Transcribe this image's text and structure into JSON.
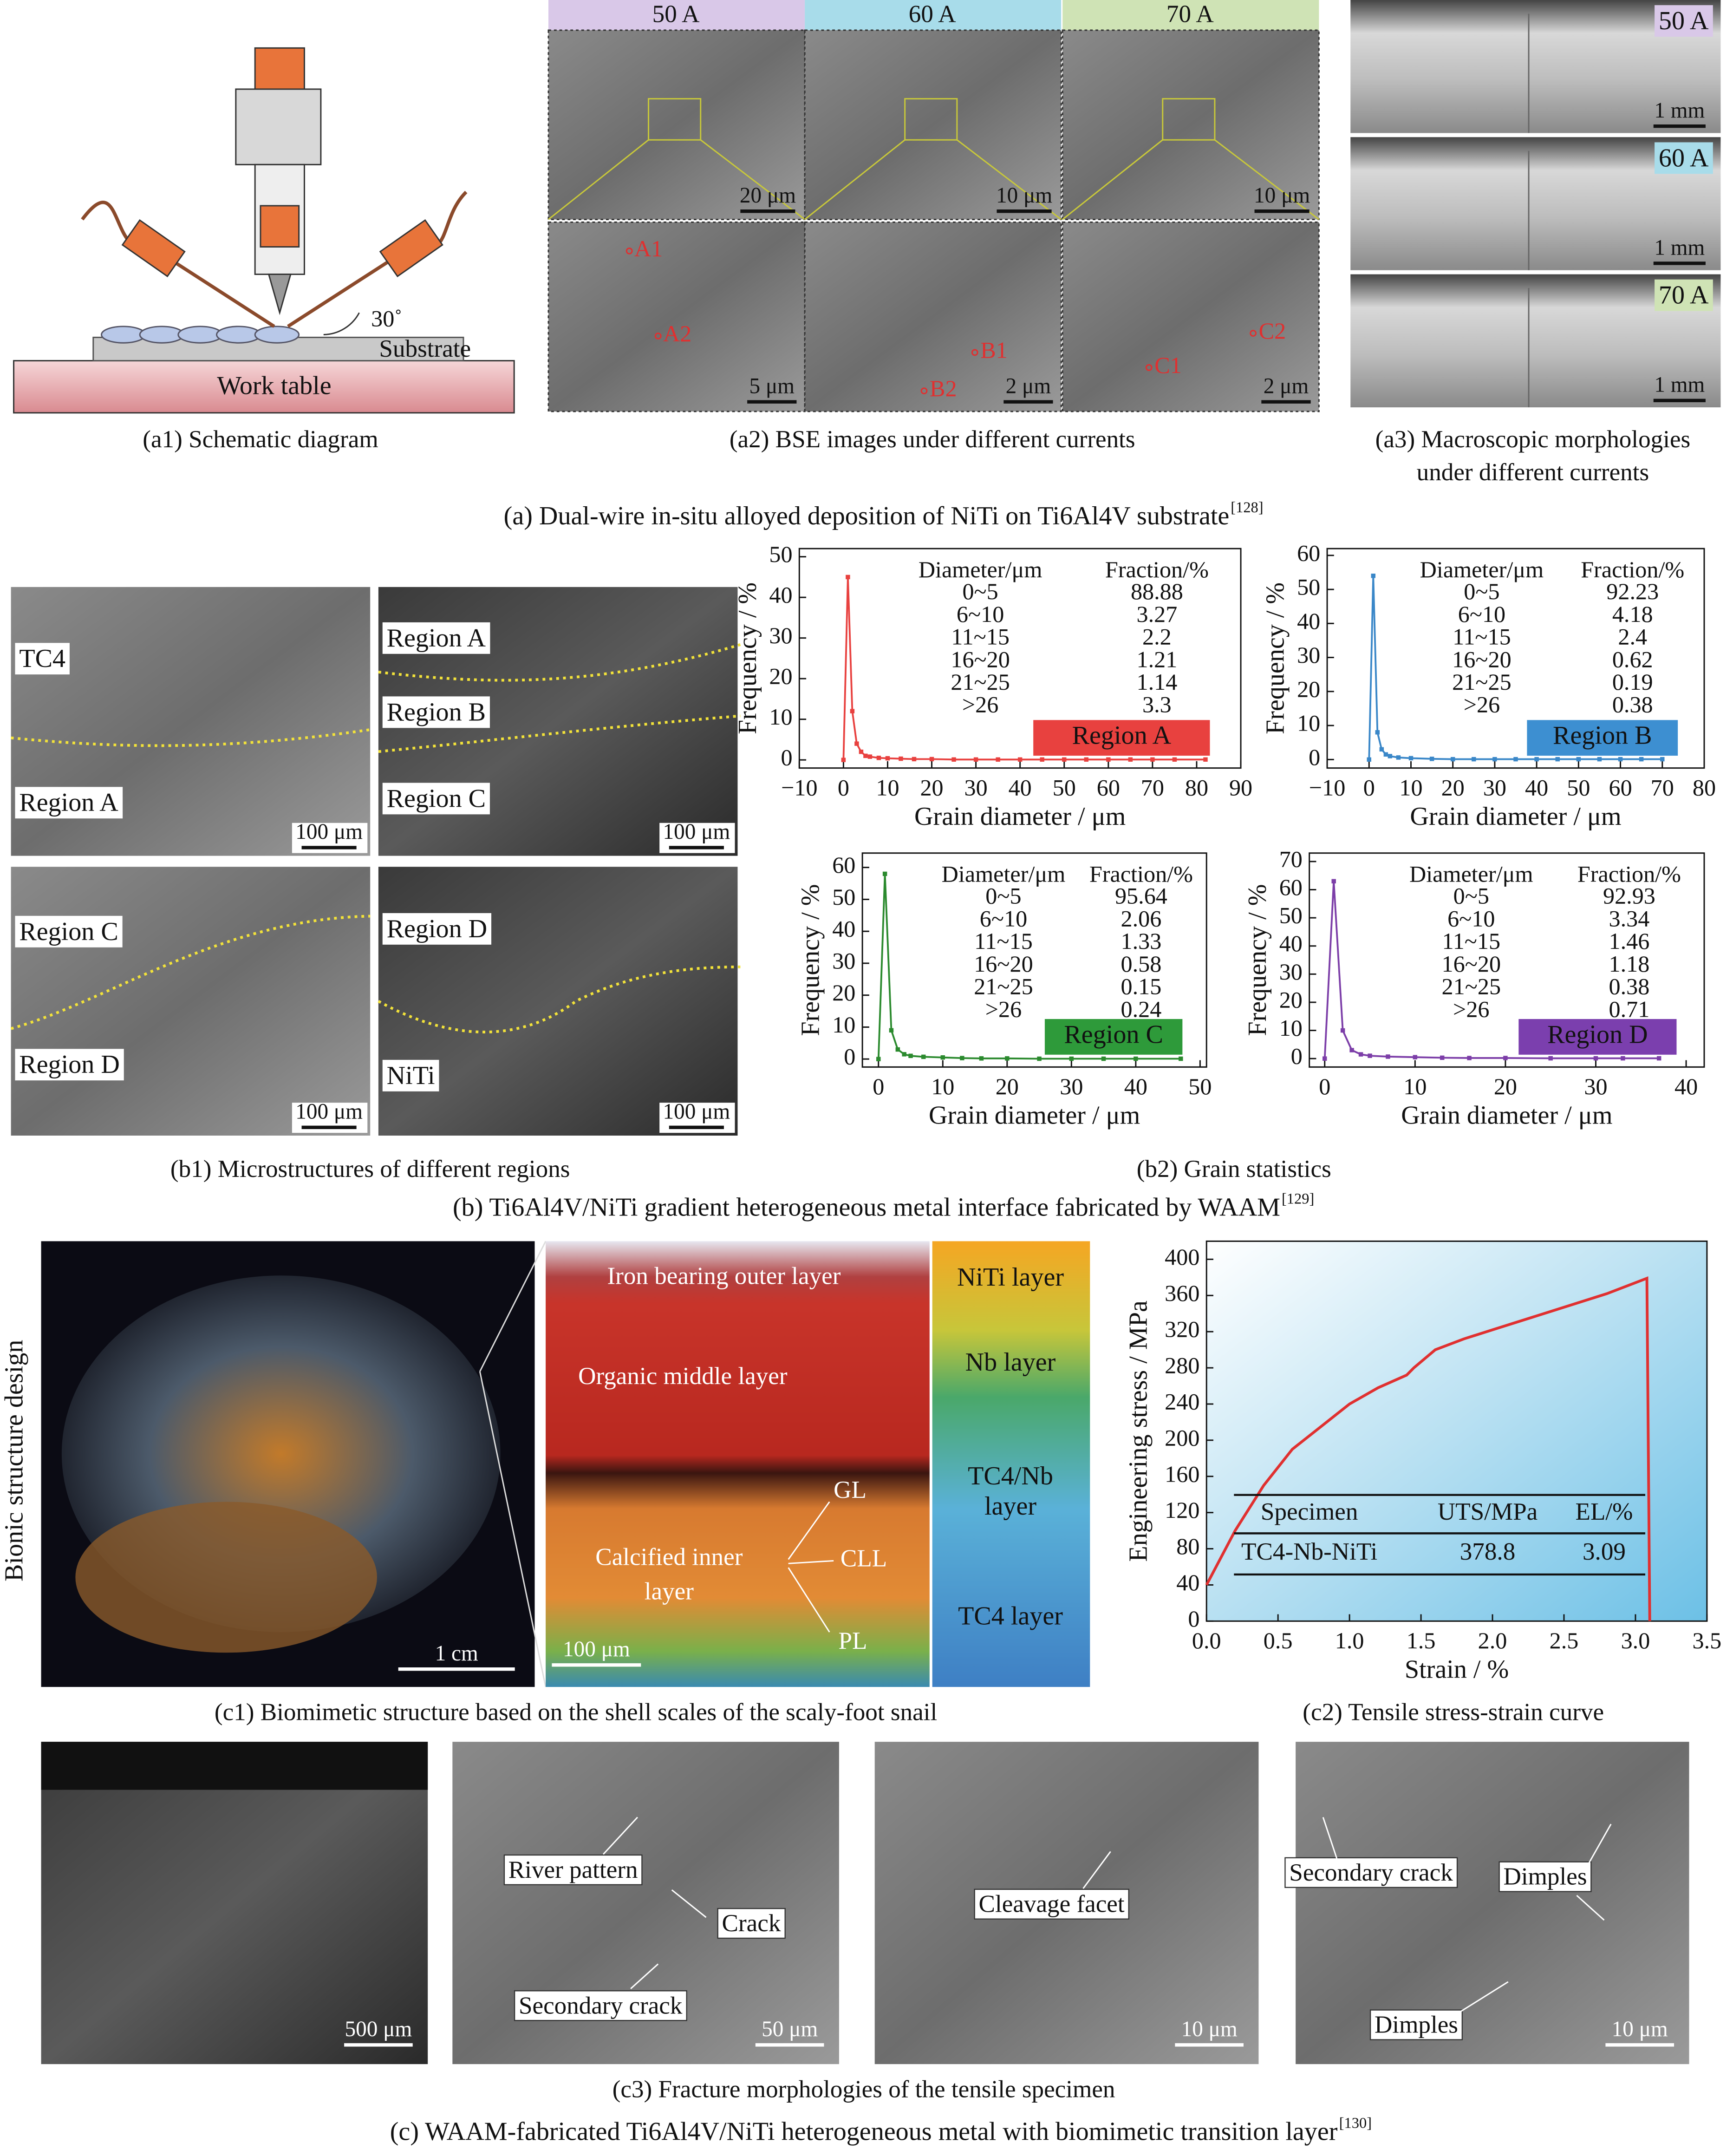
{
  "chart_data": [
    {
      "type": "line",
      "markers": true,
      "color": "#e8413f",
      "x": [
        0,
        1,
        2,
        3,
        4,
        5,
        6,
        8,
        10,
        13,
        16,
        20,
        25,
        30,
        35,
        40,
        45,
        50,
        55,
        60,
        65,
        70,
        75,
        82
      ],
      "values": [
        0,
        45,
        12,
        4,
        2,
        1,
        0.8,
        0.5,
        0.4,
        0.3,
        0.2,
        0.2,
        0.1,
        0.1,
        0.1,
        0.1,
        0.1,
        0.1,
        0.1,
        0.1,
        0.1,
        0.1,
        0.1,
        0.1
      ],
      "xlabel": "Grain diameter / μm",
      "ylabel": "Frequency / %",
      "xlim": [
        -10,
        90
      ],
      "xticks": [
        {
          "value": -10,
          "label": "−10"
        },
        0,
        10,
        20,
        30,
        40,
        50,
        60,
        70,
        80,
        90
      ],
      "ylim": [
        -2,
        52
      ],
      "yticks": [
        0,
        10,
        20,
        30,
        40,
        50
      ],
      "table": {
        "header": [
          "Diameter/μm",
          "Fraction/%"
        ],
        "rows": [
          [
            "0~5",
            "88.88"
          ],
          [
            "6~10",
            "3.27"
          ],
          [
            "11~15",
            "2.2"
          ],
          [
            "16~20",
            "1.21"
          ],
          [
            "21~25",
            "1.14"
          ],
          [
            ">26",
            "3.3"
          ]
        ]
      },
      "label": "Region A",
      "label_color": "#e8413f"
    },
    {
      "type": "line",
      "markers": true,
      "color": "#3a87c8",
      "x": [
        0,
        1,
        2,
        3,
        4,
        5,
        7,
        10,
        15,
        20,
        25,
        30,
        35,
        40,
        45,
        50,
        55,
        60,
        65,
        70
      ],
      "values": [
        0,
        54,
        8,
        3,
        1.5,
        1,
        0.6,
        0.4,
        0.2,
        0.1,
        0.1,
        0.1,
        0.1,
        0.1,
        0.1,
        0.1,
        0.1,
        0.1,
        0.1,
        0.1
      ],
      "xlabel": "Grain diameter / μm",
      "ylabel": "Frequency / %",
      "xlim": [
        -10,
        80
      ],
      "xticks": [
        {
          "value": -10,
          "label": "−10"
        },
        0,
        10,
        20,
        30,
        40,
        50,
        60,
        70,
        80
      ],
      "ylim": [
        -2.5,
        62
      ],
      "yticks": [
        0,
        10,
        20,
        30,
        40,
        50,
        60
      ],
      "table": {
        "header": [
          "Diameter/μm",
          "Fraction/%"
        ],
        "rows": [
          [
            "0~5",
            "92.23"
          ],
          [
            "6~10",
            "4.18"
          ],
          [
            "11~15",
            "2.4"
          ],
          [
            "16~20",
            "0.62"
          ],
          [
            "21~25",
            "0.19"
          ],
          [
            ">26",
            "0.38"
          ]
        ]
      },
      "label": "Region B",
      "label_color": "#3d8fd1"
    },
    {
      "type": "line",
      "markers": true,
      "color": "#2b8a2e",
      "x": [
        0,
        1,
        2,
        3,
        4,
        5,
        7,
        10,
        13,
        16,
        20,
        25,
        30,
        35,
        40,
        47
      ],
      "values": [
        0,
        58,
        9,
        3,
        1.5,
        1,
        0.7,
        0.5,
        0.3,
        0.2,
        0.2,
        0.1,
        0.1,
        0.1,
        0.1,
        0.1
      ],
      "xlabel": "Grain diameter / μm",
      "ylabel": "Frequency / %",
      "xlim": [
        -2.5,
        51
      ],
      "xticks": [
        0,
        10,
        20,
        30,
        40,
        50
      ],
      "ylim": [
        -2.5,
        64.5
      ],
      "yticks": [
        0,
        10,
        20,
        30,
        40,
        50,
        60
      ],
      "table": {
        "header": [
          "Diameter/μm",
          "Fraction/%"
        ],
        "rows": [
          [
            "0~5",
            "95.64"
          ],
          [
            "6~10",
            "2.06"
          ],
          [
            "11~15",
            "1.33"
          ],
          [
            "16~20",
            "0.58"
          ],
          [
            "21~25",
            "0.15"
          ],
          [
            ">26",
            "0.24"
          ]
        ]
      },
      "label": "Region C",
      "label_color": "#2e9a3a"
    },
    {
      "type": "line",
      "markers": true,
      "color": "#7c3ea8",
      "x": [
        0,
        1,
        2,
        3,
        4,
        5,
        7,
        10,
        13,
        16,
        20,
        25,
        30,
        33,
        37
      ],
      "values": [
        0,
        63,
        10,
        3,
        1.5,
        1,
        0.7,
        0.5,
        0.3,
        0.2,
        0.2,
        0.1,
        0.1,
        0.1,
        0.1
      ],
      "xlabel": "Grain diameter / μm",
      "ylabel": "Frequency / %",
      "xlim": [
        -1.7,
        42
      ],
      "xticks": [
        0,
        10,
        20,
        30,
        40
      ],
      "ylim": [
        -3,
        73
      ],
      "yticks": [
        0,
        10,
        20,
        30,
        40,
        50,
        60,
        70
      ],
      "table": {
        "header": [
          "Diameter/μm",
          "Fraction/%"
        ],
        "rows": [
          [
            "0~5",
            "92.93"
          ],
          [
            "6~10",
            "3.34"
          ],
          [
            "11~15",
            "1.46"
          ],
          [
            "16~20",
            "1.18"
          ],
          [
            "21~25",
            "0.38"
          ],
          [
            ">26",
            "0.71"
          ]
        ]
      },
      "label": "Region D",
      "label_color": "#7b3fae"
    },
    {
      "type": "line",
      "markers": false,
      "color": "#e03030",
      "x": [
        0,
        0.2,
        0.4,
        0.6,
        0.8,
        1.0,
        1.2,
        1.4,
        1.45,
        1.6,
        1.8,
        2.0,
        2.4,
        2.8,
        3.08,
        3.1
      ],
      "values": [
        40,
        100,
        150,
        190,
        215,
        240,
        258,
        272,
        280,
        300,
        312,
        322,
        342,
        362,
        379,
        0
      ],
      "xlabel": "Strain / %",
      "ylabel": "Engineering stress / MPa",
      "xlim": [
        0,
        3.5
      ],
      "xticks": [
        {
          "value": 0,
          "label": "0.0"
        },
        0.5,
        {
          "value": 1,
          "label": "1.0"
        },
        1.5,
        {
          "value": 2,
          "label": "2.0"
        },
        2.5,
        {
          "value": 3,
          "label": "3.0"
        },
        3.5
      ],
      "ylim": [
        0,
        420
      ],
      "yticks": [
        0,
        40,
        80,
        120,
        160,
        200,
        240,
        280,
        320,
        360,
        400
      ],
      "table": {
        "header": [
          "Specimen",
          "UTS/MPa",
          "EL/%"
        ],
        "rows": [
          [
            "TC4-Nb-NiTi",
            "378.8",
            "3.09"
          ]
        ]
      }
    }
  ],
  "figure_a": {
    "title": "(a) Dual-wire in-situ alloyed deposition of NiTi on Ti6Al4V substrate",
    "ref": "[128]",
    "a1": {
      "caption": "(a1) Schematic diagram",
      "angle": "30˚",
      "substrate": "Substrate",
      "table": "Work table"
    },
    "a2": {
      "caption": "(a2) BSE images under different currents",
      "currents": [
        "50 A",
        "60 A",
        "70 A"
      ],
      "scales_top": [
        "20 μm",
        "10 μm",
        "10 μm"
      ],
      "scales_bottom": [
        "5 μm",
        "2 μm",
        "2 μm"
      ],
      "points": [
        "A1",
        "A2",
        "B1",
        "B2",
        "C1",
        "C2"
      ]
    },
    "a3": {
      "caption": [
        "(a3) Macroscopic morphologies",
        "under different currents"
      ],
      "currents": [
        "50 A",
        "60 A",
        "70 A"
      ],
      "scales": [
        "1 mm",
        "1 mm",
        "1 mm"
      ]
    }
  },
  "figure_b": {
    "title": "(b) Ti6Al4V/NiTi gradient heterogeneous metal interface fabricated by WAAM",
    "ref": "[129]",
    "b1": {
      "caption": "(b1) Microstructures of different regions",
      "panels": [
        {
          "labels": [
            "TC4",
            "Region A"
          ],
          "scale": "100 μm"
        },
        {
          "labels": [
            "Region A",
            "Region B",
            "Region C"
          ],
          "scale": "100 μm"
        },
        {
          "labels": [
            "Region C",
            "Region D"
          ],
          "scale": "100 μm"
        },
        {
          "labels": [
            "Region D",
            "NiTi"
          ],
          "scale": "100 μm"
        }
      ]
    },
    "b2": {
      "caption": "(b2) Grain statistics"
    }
  },
  "figure_c": {
    "title": "(c) WAAM-fabricated Ti6Al4V/NiTi heterogeneous metal with biomimetic transition layer",
    "ref": "[130]",
    "c1": {
      "caption": "(c1) Biomimetic structure based on the shell scales of the scaly-foot snail",
      "side": "Bionic structure design",
      "snail_scale": "1 cm",
      "section_scale": "100 μm",
      "section_labels": [
        "Iron bearing outer layer",
        "Organic middle layer",
        "GL",
        "Calcified inner",
        "layer",
        "CLL",
        "PL"
      ],
      "layers": [
        [
          "NiTi layer"
        ],
        [
          "Nb layer"
        ],
        [
          "TC4/Nb",
          "layer"
        ],
        [
          "TC4 layer"
        ]
      ]
    },
    "c2": {
      "caption": "(c2) Tensile stress-strain curve"
    },
    "c3": {
      "caption": "(c3) Fracture morphologies of the tensile specimen",
      "scales": [
        "500 μm",
        "50 μm",
        "10 μm",
        "10 μm"
      ],
      "annotations": [
        "River pattern",
        "Crack",
        "Secondary crack",
        "Cleavage facet",
        "Secondary crack",
        "Dimples",
        "Dimples"
      ]
    }
  }
}
